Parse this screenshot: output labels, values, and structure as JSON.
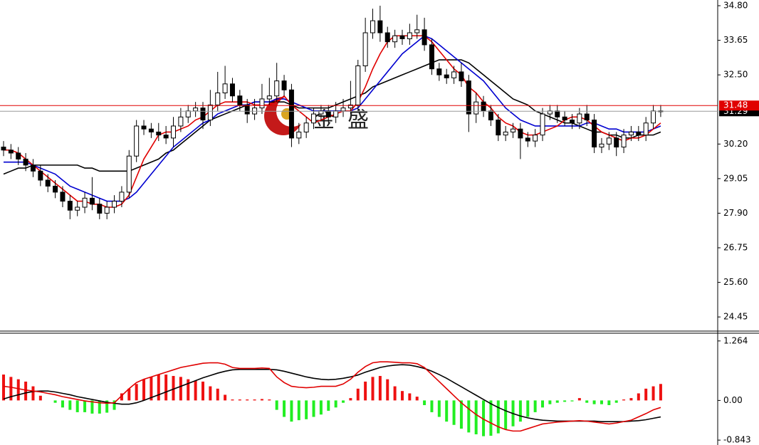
{
  "chart_data": [
    {
      "type": "candlestick",
      "watermark": "金盛",
      "ylim": [
        23.98,
        34.99
      ],
      "yticks": [
        {
          "value": 34.8,
          "label": "34.80"
        },
        {
          "value": 33.65,
          "label": "33.65"
        },
        {
          "value": 32.5,
          "label": "32.50"
        },
        {
          "value": 30.2,
          "label": "30.20"
        },
        {
          "value": 29.05,
          "label": "29.05"
        },
        {
          "value": 27.9,
          "label": "27.90"
        },
        {
          "value": 26.75,
          "label": "26.75"
        },
        {
          "value": 25.6,
          "label": "25.60"
        },
        {
          "value": 24.45,
          "label": "24.45"
        }
      ],
      "hlines": [
        {
          "value": 31.29,
          "color": "#999999",
          "label_bg": "#000000"
        },
        {
          "value": 31.48,
          "color": "#e00000",
          "label_bg": "#e00000"
        }
      ],
      "open": [
        30.1,
        30.0,
        29.9,
        29.7,
        29.5,
        29.3,
        29.0,
        28.8,
        28.6,
        28.3,
        28.0,
        28.1,
        28.4,
        28.2,
        27.9,
        28.1,
        28.3,
        28.6,
        29.8,
        30.8,
        30.7,
        30.6,
        30.5,
        30.4,
        30.8,
        31.1,
        31.3,
        31.4,
        31.0,
        31.5,
        31.9,
        32.2,
        31.8,
        31.5,
        31.2,
        31.4,
        31.7,
        31.8,
        32.3,
        32.0,
        30.4,
        30.6,
        30.9,
        31.2,
        31.3,
        31.1,
        31.3,
        31.4,
        31.5,
        32.8,
        33.9,
        34.3,
        33.9,
        33.6,
        33.8,
        33.7,
        33.9,
        34.0,
        33.5,
        32.7,
        32.5,
        32.4,
        32.6,
        32.3,
        31.2,
        31.6,
        31.3,
        31.0,
        30.5,
        30.6,
        30.7,
        30.4,
        30.3,
        30.5,
        31.2,
        31.3,
        31.1,
        31.0,
        30.9,
        31.2,
        31.0,
        30.1,
        30.2,
        30.4,
        30.1,
        30.5,
        30.6,
        30.5,
        30.9,
        31.3
      ],
      "high": [
        30.3,
        30.2,
        30.1,
        29.9,
        29.7,
        29.5,
        29.2,
        29.0,
        28.8,
        28.5,
        28.3,
        28.6,
        29.1,
        28.4,
        28.3,
        28.5,
        28.8,
        30.0,
        31.0,
        31.0,
        30.9,
        30.9,
        30.8,
        31.1,
        31.4,
        31.5,
        31.6,
        31.6,
        32.0,
        32.6,
        32.8,
        32.4,
        32.0,
        31.7,
        31.7,
        32.2,
        32.4,
        32.9,
        32.5,
        32.2,
        30.9,
        31.1,
        31.4,
        31.5,
        31.5,
        31.6,
        31.7,
        32.3,
        33.0,
        34.4,
        34.7,
        34.8,
        34.1,
        34.0,
        34.0,
        34.2,
        34.5,
        34.4,
        33.7,
        32.9,
        32.7,
        32.8,
        32.9,
        32.5,
        31.9,
        31.8,
        31.5,
        31.2,
        30.8,
        30.9,
        30.9,
        30.6,
        30.7,
        31.4,
        31.5,
        31.5,
        31.3,
        31.2,
        31.4,
        31.5,
        31.2,
        30.4,
        30.6,
        30.6,
        30.7,
        30.8,
        30.8,
        31.1,
        31.5,
        31.5
      ],
      "low": [
        29.8,
        29.7,
        29.5,
        29.3,
        29.1,
        28.8,
        28.6,
        28.4,
        28.1,
        27.7,
        27.8,
        27.9,
        28.0,
        27.7,
        27.7,
        27.9,
        28.1,
        28.4,
        29.6,
        30.5,
        30.4,
        30.3,
        30.2,
        30.1,
        30.6,
        30.9,
        31.1,
        30.7,
        30.8,
        31.3,
        31.7,
        31.6,
        31.3,
        30.9,
        31.0,
        31.2,
        31.5,
        31.6,
        31.8,
        30.1,
        30.2,
        30.4,
        30.7,
        31.0,
        30.9,
        30.9,
        31.1,
        31.2,
        31.3,
        32.6,
        33.7,
        33.6,
        33.4,
        33.4,
        33.5,
        33.5,
        33.7,
        33.3,
        32.5,
        32.3,
        32.2,
        32.2,
        32.1,
        30.6,
        30.9,
        31.1,
        30.8,
        30.3,
        30.3,
        30.4,
        29.7,
        30.1,
        30.1,
        30.3,
        31.0,
        30.9,
        30.8,
        30.7,
        30.7,
        30.8,
        29.9,
        29.9,
        30.0,
        29.8,
        29.9,
        30.3,
        30.3,
        30.3,
        30.7,
        31.1
      ],
      "close": [
        30.0,
        29.9,
        29.7,
        29.5,
        29.3,
        29.0,
        28.8,
        28.6,
        28.3,
        28.0,
        28.1,
        28.4,
        28.2,
        27.9,
        28.1,
        28.3,
        28.6,
        29.8,
        30.8,
        30.7,
        30.6,
        30.5,
        30.4,
        30.8,
        31.1,
        31.3,
        31.4,
        31.0,
        31.5,
        31.9,
        32.2,
        31.8,
        31.5,
        31.2,
        31.4,
        31.7,
        31.8,
        32.3,
        32.0,
        30.4,
        30.6,
        30.9,
        31.2,
        31.3,
        31.1,
        31.3,
        31.4,
        31.5,
        32.8,
        33.9,
        34.3,
        33.9,
        33.6,
        33.8,
        33.7,
        33.9,
        34.0,
        33.5,
        32.7,
        32.5,
        32.4,
        32.6,
        32.3,
        31.2,
        31.6,
        31.3,
        31.0,
        30.5,
        30.6,
        30.7,
        30.4,
        30.3,
        30.5,
        31.2,
        31.3,
        31.1,
        31.0,
        30.9,
        31.2,
        31.0,
        30.1,
        30.2,
        30.4,
        30.1,
        30.5,
        30.6,
        30.5,
        30.9,
        31.3,
        31.29
      ],
      "lines": [
        {
          "color": "#000000",
          "values": [
            29.2,
            29.3,
            29.4,
            29.4,
            29.5,
            29.5,
            29.5,
            29.5,
            29.5,
            29.5,
            29.5,
            29.4,
            29.4,
            29.3,
            29.3,
            29.3,
            29.3,
            29.3,
            29.4,
            29.5,
            29.6,
            29.7,
            29.9,
            30.0,
            30.2,
            30.4,
            30.6,
            30.8,
            31.0,
            31.1,
            31.2,
            31.3,
            31.4,
            31.5,
            31.6,
            31.6,
            31.6,
            31.6,
            31.6,
            31.5,
            31.4,
            31.4,
            31.4,
            31.4,
            31.4,
            31.5,
            31.6,
            31.7,
            31.8,
            31.9,
            32.1,
            32.2,
            32.3,
            32.4,
            32.5,
            32.6,
            32.7,
            32.8,
            32.9,
            33.0,
            33.0,
            33.0,
            33.0,
            32.9,
            32.7,
            32.5,
            32.3,
            32.1,
            31.9,
            31.7,
            31.6,
            31.5,
            31.3,
            31.2,
            31.1,
            31.0,
            30.9,
            30.9,
            30.8,
            30.7,
            30.6,
            30.6,
            30.5,
            30.5,
            30.4,
            30.4,
            30.5,
            30.5,
            30.5,
            30.6
          ]
        },
        {
          "color": "#0000d0",
          "values": [
            29.6,
            29.6,
            29.6,
            29.6,
            29.5,
            29.4,
            29.3,
            29.2,
            29.0,
            28.8,
            28.7,
            28.6,
            28.5,
            28.4,
            28.3,
            28.3,
            28.3,
            28.4,
            28.6,
            28.9,
            29.2,
            29.5,
            29.8,
            30.1,
            30.3,
            30.5,
            30.7,
            30.9,
            31.0,
            31.2,
            31.3,
            31.4,
            31.5,
            31.5,
            31.6,
            31.6,
            31.6,
            31.7,
            31.7,
            31.6,
            31.5,
            31.4,
            31.3,
            31.3,
            31.3,
            31.3,
            31.3,
            31.3,
            31.4,
            31.7,
            32.0,
            32.3,
            32.6,
            32.9,
            33.2,
            33.4,
            33.6,
            33.8,
            33.7,
            33.5,
            33.3,
            33.1,
            32.9,
            32.7,
            32.5,
            32.3,
            32.0,
            31.7,
            31.4,
            31.2,
            31.0,
            30.9,
            30.8,
            30.8,
            30.8,
            30.8,
            30.8,
            30.8,
            30.8,
            30.9,
            30.9,
            30.8,
            30.7,
            30.7,
            30.6,
            30.6,
            30.6,
            30.6,
            30.7,
            30.8
          ]
        },
        {
          "color": "#e00000",
          "values": [
            30.0,
            30.0,
            29.9,
            29.7,
            29.5,
            29.3,
            29.1,
            28.9,
            28.7,
            28.5,
            28.3,
            28.3,
            28.2,
            28.2,
            28.1,
            28.1,
            28.2,
            28.5,
            29.1,
            29.7,
            30.1,
            30.5,
            30.6,
            30.6,
            30.7,
            30.8,
            31.0,
            31.1,
            31.3,
            31.5,
            31.6,
            31.6,
            31.6,
            31.6,
            31.5,
            31.5,
            31.5,
            31.6,
            31.8,
            31.5,
            31.3,
            31.1,
            30.9,
            31.0,
            31.1,
            31.2,
            31.3,
            31.3,
            31.6,
            32.1,
            32.7,
            33.2,
            33.6,
            33.8,
            33.8,
            33.8,
            33.8,
            33.8,
            33.6,
            33.3,
            33.0,
            32.7,
            32.5,
            32.1,
            31.9,
            31.6,
            31.4,
            31.1,
            30.9,
            30.8,
            30.6,
            30.5,
            30.5,
            30.6,
            30.7,
            30.8,
            31.0,
            31.1,
            31.1,
            31.0,
            30.8,
            30.6,
            30.5,
            30.4,
            30.3,
            30.4,
            30.4,
            30.5,
            30.7,
            30.9
          ]
        }
      ]
    },
    {
      "type": "macd",
      "ylim": [
        -0.947,
        1.428
      ],
      "yticks": [
        {
          "value": 1.264,
          "label": "1.264"
        },
        {
          "value": 0,
          "label": "0.00"
        },
        {
          "value": -0.843,
          "label": "-0.843"
        }
      ],
      "pos_color": "#ee1111",
      "neg_color": "#22ee22",
      "values": [
        0.55,
        0.5,
        0.45,
        0.4,
        0.3,
        0.1,
        0.0,
        -0.05,
        -0.15,
        -0.2,
        -0.25,
        -0.25,
        -0.28,
        -0.28,
        -0.26,
        -0.2,
        0.15,
        0.25,
        0.35,
        0.45,
        0.5,
        0.55,
        0.55,
        0.52,
        0.5,
        0.45,
        0.42,
        0.4,
        0.3,
        0.25,
        0.12,
        0.02,
        0.02,
        0.02,
        0.02,
        0.03,
        0.02,
        -0.2,
        -0.35,
        -0.45,
        -0.42,
        -0.4,
        -0.35,
        -0.3,
        -0.22,
        -0.15,
        -0.05,
        0.05,
        0.25,
        0.4,
        0.5,
        0.52,
        0.45,
        0.3,
        0.2,
        0.15,
        0.08,
        -0.1,
        -0.25,
        -0.35,
        -0.45,
        -0.52,
        -0.6,
        -0.68,
        -0.72,
        -0.76,
        -0.75,
        -0.7,
        -0.62,
        -0.55,
        -0.45,
        -0.35,
        -0.25,
        -0.15,
        -0.08,
        -0.05,
        -0.03,
        -0.02,
        0.05,
        -0.05,
        -0.08,
        -0.08,
        -0.1,
        -0.05,
        0.02,
        0.05,
        0.15,
        0.25,
        0.3,
        0.35
      ],
      "lines": [
        {
          "color": "#000000",
          "values": [
            0.03,
            0.08,
            0.12,
            0.16,
            0.19,
            0.2,
            0.2,
            0.18,
            0.15,
            0.12,
            0.08,
            0.05,
            0.02,
            -0.01,
            -0.04,
            -0.06,
            -0.08,
            -0.08,
            -0.05,
            0.0,
            0.06,
            0.12,
            0.18,
            0.24,
            0.3,
            0.36,
            0.42,
            0.48,
            0.53,
            0.58,
            0.62,
            0.65,
            0.66,
            0.66,
            0.66,
            0.66,
            0.66,
            0.65,
            0.62,
            0.58,
            0.54,
            0.5,
            0.47,
            0.45,
            0.44,
            0.45,
            0.47,
            0.5,
            0.54,
            0.6,
            0.65,
            0.7,
            0.73,
            0.75,
            0.76,
            0.75,
            0.72,
            0.68,
            0.62,
            0.55,
            0.47,
            0.38,
            0.29,
            0.2,
            0.11,
            0.02,
            -0.07,
            -0.15,
            -0.22,
            -0.28,
            -0.33,
            -0.37,
            -0.4,
            -0.42,
            -0.43,
            -0.44,
            -0.44,
            -0.44,
            -0.44,
            -0.44,
            -0.44,
            -0.45,
            -0.45,
            -0.45,
            -0.45,
            -0.44,
            -0.43,
            -0.41,
            -0.38,
            -0.35
          ]
        },
        {
          "color": "#e00000",
          "values": [
            0.3,
            0.28,
            0.25,
            0.22,
            0.2,
            0.18,
            0.15,
            0.12,
            0.08,
            0.05,
            0.02,
            -0.01,
            -0.03,
            -0.05,
            -0.06,
            -0.05,
            0.1,
            0.25,
            0.38,
            0.45,
            0.5,
            0.55,
            0.6,
            0.65,
            0.7,
            0.73,
            0.76,
            0.79,
            0.8,
            0.8,
            0.77,
            0.7,
            0.68,
            0.68,
            0.68,
            0.69,
            0.68,
            0.5,
            0.38,
            0.3,
            0.28,
            0.27,
            0.28,
            0.3,
            0.3,
            0.3,
            0.35,
            0.45,
            0.6,
            0.72,
            0.8,
            0.82,
            0.82,
            0.81,
            0.8,
            0.8,
            0.78,
            0.7,
            0.55,
            0.4,
            0.25,
            0.1,
            -0.05,
            -0.18,
            -0.3,
            -0.4,
            -0.48,
            -0.56,
            -0.62,
            -0.65,
            -0.65,
            -0.6,
            -0.55,
            -0.5,
            -0.48,
            -0.46,
            -0.45,
            -0.44,
            -0.43,
            -0.44,
            -0.46,
            -0.48,
            -0.5,
            -0.48,
            -0.45,
            -0.42,
            -0.35,
            -0.28,
            -0.2,
            -0.15
          ]
        }
      ]
    }
  ]
}
